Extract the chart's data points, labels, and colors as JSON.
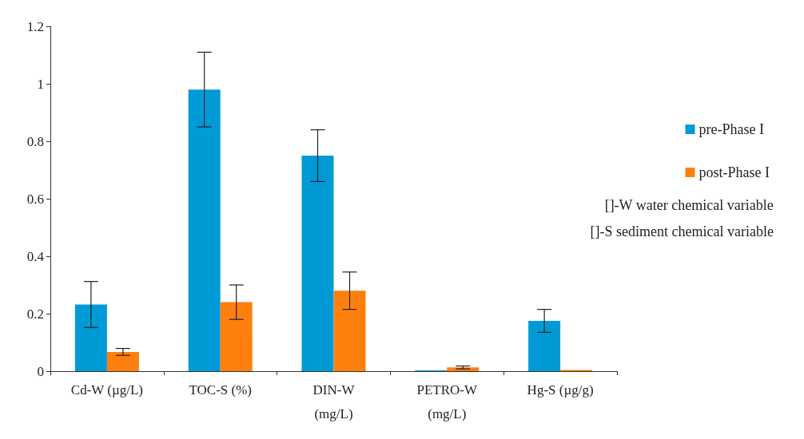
{
  "chart_data": {
    "type": "bar",
    "categories": [
      "Cd-W (µg/L)",
      "TOC-S (%)",
      "DIN-W\n(mg/L)",
      "PETRO-W\n(mg/L)",
      "Hg-S (µg/g)"
    ],
    "series": [
      {
        "name": "pre-Phase I",
        "color": "#009ad6",
        "values": [
          0.232,
          0.98,
          0.75,
          0.003,
          0.175
        ],
        "errors": [
          0.08,
          0.13,
          0.09,
          null,
          0.04
        ]
      },
      {
        "name": "post-Phase I",
        "color": "#ff7f0e",
        "values": [
          0.067,
          0.24,
          0.28,
          0.013,
          0.004
        ],
        "errors": [
          0.012,
          0.06,
          0.065,
          0.005,
          null
        ]
      }
    ],
    "ylim": [
      0,
      1.2
    ],
    "yticks": [
      0,
      0.2,
      0.4,
      0.6,
      0.8,
      1,
      1.2
    ],
    "grid": false,
    "legend": "right",
    "annotations": [
      "[]-W water chemical variable",
      "[]-S sediment chemical variable"
    ]
  }
}
